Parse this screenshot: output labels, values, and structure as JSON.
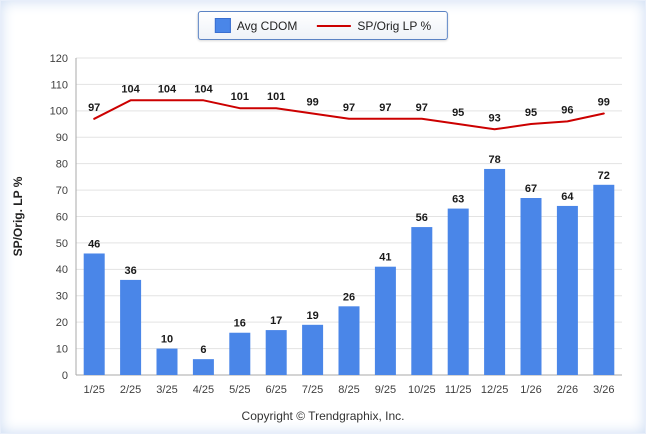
{
  "chart_data": {
    "type": "bar+line",
    "title": "",
    "categories": [
      "1/25",
      "2/25",
      "3/25",
      "4/25",
      "5/25",
      "6/25",
      "7/25",
      "8/25",
      "9/25",
      "10/25",
      "11/25",
      "12/25",
      "1/26",
      "2/26",
      "3/26"
    ],
    "series": [
      {
        "name": "Avg CDOM",
        "type": "bar",
        "color": "#4a86e8",
        "values": [
          46,
          36,
          10,
          6,
          16,
          17,
          19,
          26,
          41,
          56,
          63,
          78,
          67,
          64,
          72
        ]
      },
      {
        "name": "SP/Orig LP %",
        "type": "line",
        "color": "#cc0000",
        "values": [
          97,
          104,
          104,
          104,
          101,
          101,
          99,
          97,
          97,
          97,
          95,
          93,
          95,
          96,
          99
        ]
      }
    ],
    "xlabel": "",
    "ylabel": "SP/Orig. LP %",
    "ylim": [
      0,
      120
    ],
    "ytick_step": 10,
    "grid": true,
    "legend_position": "top-center"
  },
  "footer": {
    "copyright": "Copyright © Trendgraphix, Inc."
  },
  "colors": {
    "bar": "#4a86e8",
    "line": "#cc0000",
    "grid": "#e3e3e3",
    "axis": "#a9a9a9",
    "label": "#1a1a1a",
    "tick": "#404040"
  }
}
